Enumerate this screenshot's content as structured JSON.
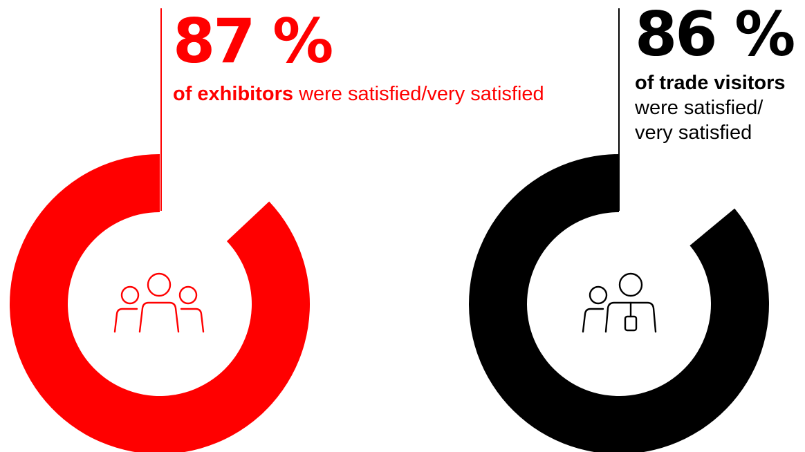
{
  "colors": {
    "exhibitors": "#ff0000",
    "visitors": "#000000",
    "background": "#ffffff"
  },
  "chart_data": [
    {
      "type": "pie",
      "value": 87,
      "value_label": "87 %",
      "label_bold": "of exhibitors",
      "label_rest": " were satisfied/very satisfied",
      "color": "#ff0000",
      "icon": "group-people-icon"
    },
    {
      "type": "pie",
      "value": 86,
      "value_label": "86 %",
      "label_bold": "of trade visitors",
      "label_rest": " were satisfied/ very satisfied",
      "color": "#000000",
      "icon": "visitor-with-badge-icon"
    }
  ]
}
